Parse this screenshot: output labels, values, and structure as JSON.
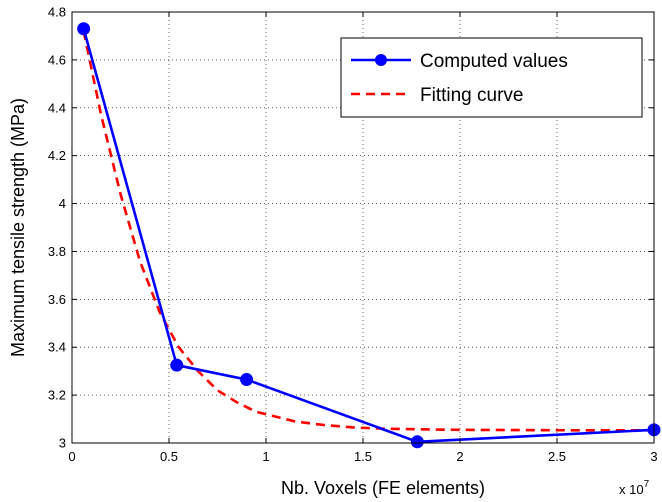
{
  "chart_data": {
    "type": "line",
    "title": "",
    "xlabel": "Nb. Voxels (FE elements)",
    "ylabel": "Maximum tensile strength (MPa)",
    "x_multiplier_label": "x 10",
    "x_multiplier_exponent": "7",
    "xlim": [
      0,
      3
    ],
    "ylim": [
      3,
      4.8
    ],
    "xticks": [
      0,
      0.5,
      1,
      1.5,
      2,
      2.5,
      3
    ],
    "xtick_labels": [
      "0",
      "0.5",
      "1",
      "1.5",
      "2",
      "2.5",
      "3"
    ],
    "yticks": [
      3,
      3.2,
      3.4,
      3.6,
      3.8,
      4,
      4.2,
      4.4,
      4.6,
      4.8
    ],
    "ytick_labels": [
      "3",
      "3.2",
      "3.4",
      "3.6",
      "3.8",
      "4",
      "4.2",
      "4.4",
      "4.6",
      "4.8"
    ],
    "grid": true,
    "legend_position": "top-right",
    "series": [
      {
        "name": "Computed values",
        "color": "#0000ff",
        "style": "solid-with-markers",
        "x": [
          0.06,
          0.54,
          0.9,
          1.78,
          3.0
        ],
        "y": [
          4.73,
          3.325,
          3.265,
          3.005,
          3.055
        ]
      },
      {
        "name": "Fitting curve",
        "color": "#ff0000",
        "style": "dashed",
        "x": [
          0.06,
          0.15,
          0.25,
          0.35,
          0.45,
          0.55,
          0.65,
          0.75,
          0.85,
          0.95,
          1.05,
          1.15,
          1.3,
          1.45,
          1.6,
          1.8,
          2.0,
          2.3,
          2.6,
          3.0
        ],
        "y": [
          4.72,
          4.37,
          4.04,
          3.76,
          3.55,
          3.4,
          3.3,
          3.22,
          3.17,
          3.13,
          3.11,
          3.09,
          3.075,
          3.065,
          3.06,
          3.057,
          3.055,
          3.054,
          3.053,
          3.053
        ]
      }
    ]
  }
}
